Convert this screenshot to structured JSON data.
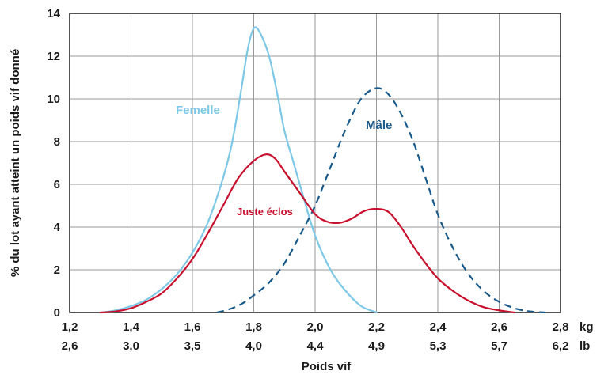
{
  "chart_data": {
    "type": "line",
    "xlabel": "Poids vif",
    "ylabel": "% du lot ayant atteint un poids vif donné",
    "xlim": [
      1.2,
      2.8
    ],
    "ylim": [
      0,
      14
    ],
    "grid": true,
    "x_ticks_kg": [
      "1,2",
      "1,4",
      "1,6",
      "1,8",
      "2,0",
      "2,2",
      "2,4",
      "2,6",
      "2,8"
    ],
    "x_ticks_lb": [
      "2,6",
      "3,0",
      "3,5",
      "4,0",
      "4,4",
      "4,9",
      "5,3",
      "5,7",
      "6,2"
    ],
    "x_unit_kg": "kg",
    "x_unit_lb": "lb",
    "y_ticks": [
      "0",
      "2",
      "4",
      "6",
      "8",
      "10",
      "12",
      "14"
    ],
    "series": [
      {
        "name": "Femelle",
        "color": "#7dc8e6",
        "style": "solid",
        "points": [
          [
            1.3,
            0
          ],
          [
            1.35,
            0.1
          ],
          [
            1.4,
            0.3
          ],
          [
            1.45,
            0.6
          ],
          [
            1.5,
            1.1
          ],
          [
            1.55,
            1.8
          ],
          [
            1.6,
            2.8
          ],
          [
            1.65,
            4.2
          ],
          [
            1.7,
            6.3
          ],
          [
            1.73,
            8.0
          ],
          [
            1.76,
            10.5
          ],
          [
            1.78,
            12.3
          ],
          [
            1.8,
            13.3
          ],
          [
            1.82,
            13.1
          ],
          [
            1.85,
            12.0
          ],
          [
            1.88,
            10.0
          ],
          [
            1.9,
            8.5
          ],
          [
            1.93,
            7.0
          ],
          [
            1.96,
            5.5
          ],
          [
            2.0,
            3.6
          ],
          [
            2.05,
            2.0
          ],
          [
            2.1,
            1.0
          ],
          [
            2.15,
            0.3
          ],
          [
            2.2,
            0
          ]
        ]
      },
      {
        "name": "Mâle",
        "color": "#1a5a8a",
        "style": "dashed",
        "points": [
          [
            1.68,
            0
          ],
          [
            1.72,
            0.15
          ],
          [
            1.76,
            0.4
          ],
          [
            1.8,
            0.8
          ],
          [
            1.85,
            1.4
          ],
          [
            1.9,
            2.3
          ],
          [
            1.95,
            3.6
          ],
          [
            2.0,
            5.0
          ],
          [
            2.05,
            6.8
          ],
          [
            2.1,
            8.6
          ],
          [
            2.15,
            10.0
          ],
          [
            2.2,
            10.5
          ],
          [
            2.24,
            10.2
          ],
          [
            2.28,
            9.3
          ],
          [
            2.32,
            8.0
          ],
          [
            2.36,
            6.3
          ],
          [
            2.4,
            4.6
          ],
          [
            2.45,
            3.0
          ],
          [
            2.5,
            1.8
          ],
          [
            2.55,
            1.0
          ],
          [
            2.6,
            0.5
          ],
          [
            2.65,
            0.2
          ],
          [
            2.7,
            0.05
          ],
          [
            2.75,
            0
          ]
        ]
      },
      {
        "name": "Juste éclos",
        "color": "#c8102e",
        "style": "solid",
        "points": [
          [
            1.3,
            0
          ],
          [
            1.35,
            0.05
          ],
          [
            1.4,
            0.2
          ],
          [
            1.45,
            0.5
          ],
          [
            1.5,
            0.9
          ],
          [
            1.55,
            1.6
          ],
          [
            1.6,
            2.5
          ],
          [
            1.65,
            3.7
          ],
          [
            1.7,
            5.0
          ],
          [
            1.75,
            6.3
          ],
          [
            1.8,
            7.1
          ],
          [
            1.84,
            7.4
          ],
          [
            1.87,
            7.2
          ],
          [
            1.9,
            6.6
          ],
          [
            1.95,
            5.6
          ],
          [
            2.0,
            4.6
          ],
          [
            2.04,
            4.25
          ],
          [
            2.08,
            4.2
          ],
          [
            2.12,
            4.4
          ],
          [
            2.16,
            4.75
          ],
          [
            2.2,
            4.85
          ],
          [
            2.24,
            4.7
          ],
          [
            2.28,
            4.0
          ],
          [
            2.32,
            3.1
          ],
          [
            2.36,
            2.3
          ],
          [
            2.4,
            1.6
          ],
          [
            2.45,
            1.0
          ],
          [
            2.5,
            0.55
          ],
          [
            2.55,
            0.25
          ],
          [
            2.6,
            0.1
          ],
          [
            2.65,
            0
          ]
        ]
      }
    ]
  }
}
